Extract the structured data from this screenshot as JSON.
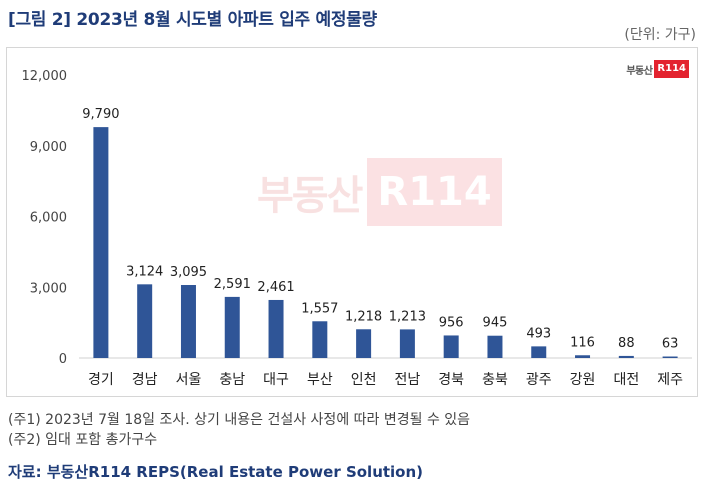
{
  "title": "[그림 2] 2023년 8월 시도별 아파트 입주 예정물량",
  "unit": "(단위: 가구)",
  "logo": {
    "text": "부동산",
    "badge": "R114"
  },
  "watermark": {
    "text": "부동산",
    "badge": "R114"
  },
  "chart_data": {
    "type": "bar",
    "title": "2023년 8월 시도별 아파트 입주 예정물량",
    "xlabel": "",
    "ylabel": "가구",
    "ylim": [
      0,
      12000
    ],
    "yticks": [
      0,
      3000,
      6000,
      9000,
      12000
    ],
    "ytick_labels": [
      "0",
      "3,000",
      "6,000",
      "9,000",
      "12,000"
    ],
    "categories": [
      "경기",
      "경남",
      "서울",
      "충남",
      "대구",
      "부산",
      "인천",
      "전남",
      "경북",
      "충북",
      "광주",
      "강원",
      "대전",
      "제주"
    ],
    "values": [
      9790,
      3124,
      3095,
      2591,
      2461,
      1557,
      1218,
      1213,
      956,
      945,
      493,
      116,
      88,
      63
    ],
    "value_labels": [
      "9,790",
      "3,124",
      "3,095",
      "2,591",
      "2,461",
      "1,557",
      "1,218",
      "1,213",
      "956",
      "945",
      "493",
      "116",
      "88",
      "63"
    ],
    "bar_color": "#2f5597",
    "grid": false
  },
  "notes": [
    "(주1) 2023년 7월 18일 조사. 상기 내용은 건설사 사정에 따라 변경될 수 있음",
    "(주2) 임대 포함 총가구수"
  ],
  "source": "자료: 부동산R114 REPS(Real Estate Power Solution)"
}
